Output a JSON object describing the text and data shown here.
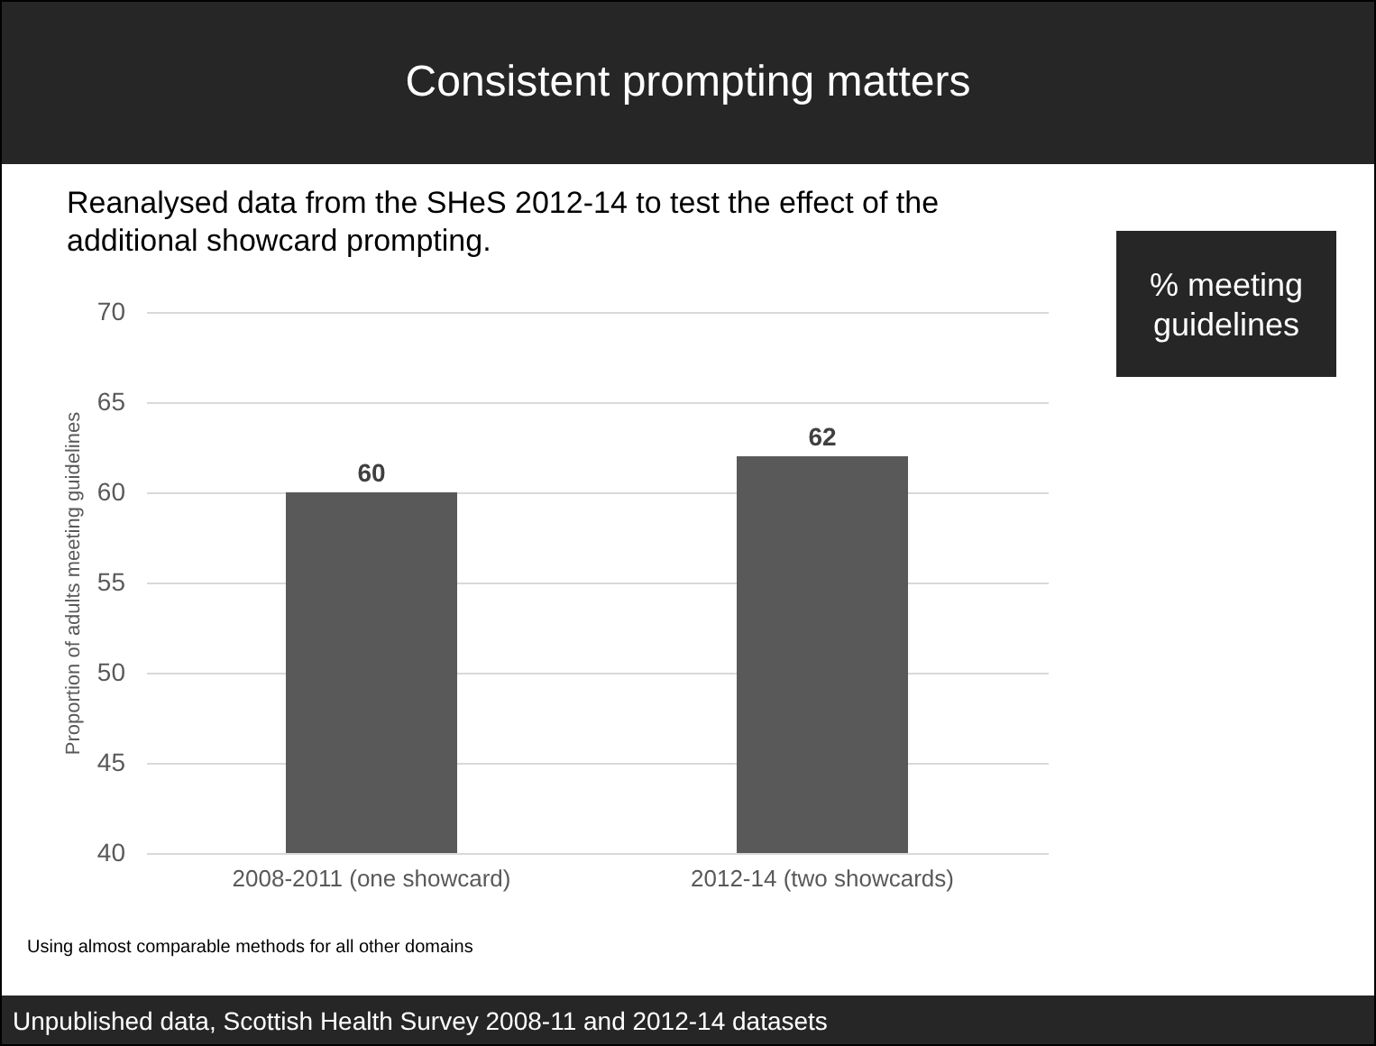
{
  "chart_data": {
    "type": "bar",
    "title": "Consistent prompting matters",
    "subtitle": "Reanalysed data from the SHeS 2012-14 to test the effect of the additional showcard prompting.",
    "ylabel": "Proportion of adults meeting guidelines",
    "categories": [
      "2008-2011 (one showcard)",
      "2012-14 (two showcards)"
    ],
    "values": [
      60,
      62
    ],
    "color": "#595959",
    "ylim": [
      40,
      70
    ],
    "yticks": [
      40,
      45,
      50,
      55,
      60,
      65,
      70
    ],
    "grid": "y",
    "data_labels": true,
    "annotations": [
      "% meeting guidelines",
      "Using almost comparable methods for all other domains",
      "Unpublished data, Scottish Health Survey 2008-11 and 2012-14 datasets"
    ]
  }
}
